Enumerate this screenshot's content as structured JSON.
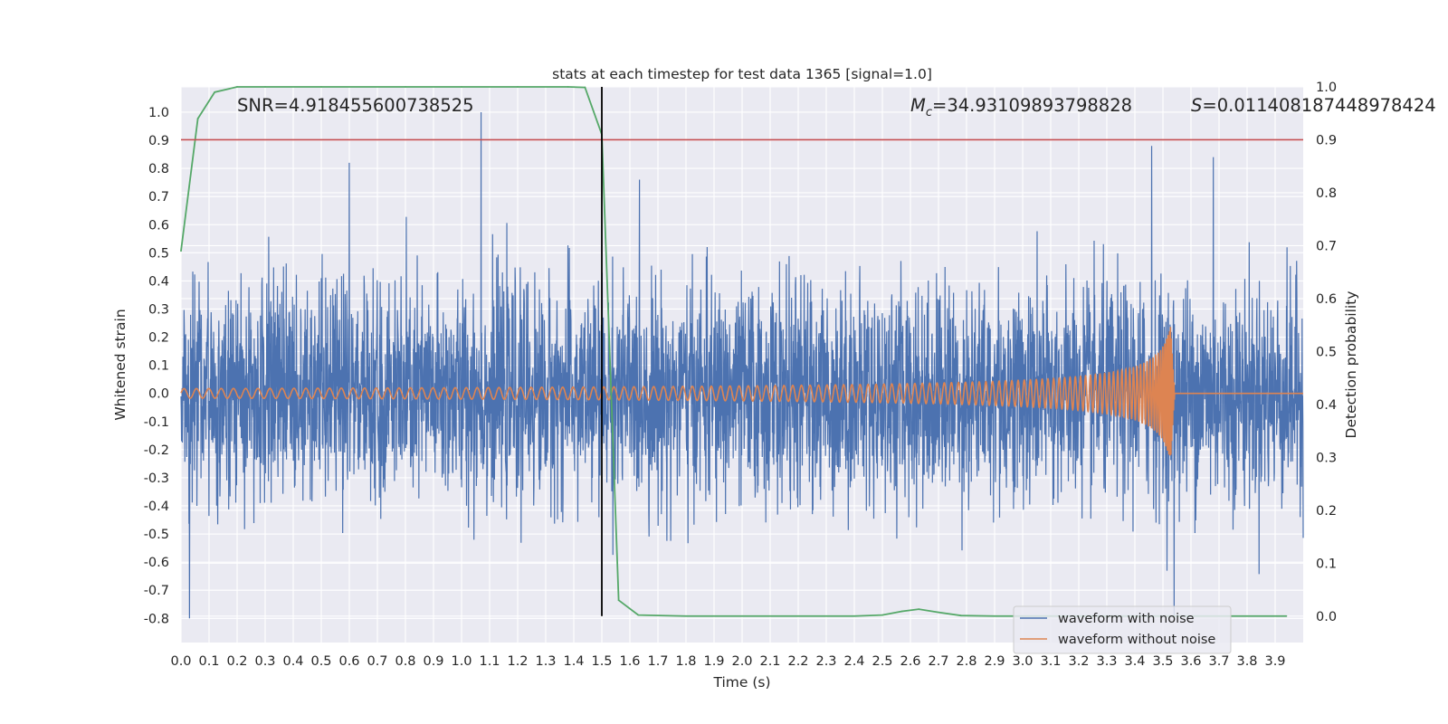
{
  "chart_data": {
    "type": "line",
    "title": "stats at each timestep for test data 1365 [signal=1.0]",
    "xlabel": "Time (s)",
    "ylabel": "Whitened strain",
    "y2label": "Detection probability",
    "xlim": [
      0.0,
      4.0
    ],
    "ylim": [
      -0.886,
      1.09
    ],
    "y2lim": [
      -0.05,
      1.0
    ],
    "x_ticks": [
      "0.0",
      "0.1",
      "0.2",
      "0.3",
      "0.4",
      "0.5",
      "0.6",
      "0.7",
      "0.8",
      "0.9",
      "1.0",
      "1.1",
      "1.2",
      "1.3",
      "1.4",
      "1.5",
      "1.6",
      "1.7",
      "1.8",
      "1.9",
      "2.0",
      "2.1",
      "2.2",
      "2.3",
      "2.4",
      "2.5",
      "2.6",
      "2.7",
      "2.8",
      "2.9",
      "3.0",
      "3.1",
      "3.2",
      "3.3",
      "3.4",
      "3.5",
      "3.6",
      "3.7",
      "3.8",
      "3.9"
    ],
    "y_ticks": [
      "-0.8",
      "-0.7",
      "-0.6",
      "-0.5",
      "-0.4",
      "-0.3",
      "-0.2",
      "-0.1",
      "0.0",
      "0.1",
      "0.2",
      "0.3",
      "0.4",
      "0.5",
      "0.6",
      "0.7",
      "0.8",
      "0.9",
      "1.0"
    ],
    "y2_ticks": [
      "0.0",
      "0.1",
      "0.2",
      "0.3",
      "0.4",
      "0.5",
      "0.6",
      "0.7",
      "0.8",
      "0.9",
      "1.0"
    ],
    "annotations": {
      "snr": "SNR=4.918455600738525",
      "mc_symbol": "M",
      "mc_sub": "c",
      "mc_value": "=34.93109893798828",
      "s_symbol": "S",
      "s_value": "=0.011408187448978424"
    },
    "threshold_y2": 0.9,
    "vline_x": 1.5,
    "legend": {
      "placement": "bottom-right",
      "entries": [
        "waveform with noise",
        "waveform without noise"
      ]
    },
    "series": [
      {
        "name": "waveform with noise",
        "color": "#4c72b0",
        "axis": "left",
        "description": "whitened strain noise, sampled densely (~2048 Hz) over 0-4 s",
        "amplitude_range": [
          -0.8,
          1.0
        ],
        "notable_peaks": [
          {
            "x": 1.07,
            "y": 1.0
          },
          {
            "x": 3.46,
            "y": 0.88
          },
          {
            "x": 3.68,
            "y": 0.84
          },
          {
            "x": 0.6,
            "y": 0.82
          },
          {
            "x": 3.54,
            "y": -0.8
          },
          {
            "x": 0.03,
            "y": -0.8
          }
        ]
      },
      {
        "name": "waveform without noise",
        "color": "#dd8452",
        "axis": "left",
        "description": "gravitational-wave chirp, amplitude growing to merger near 3.53 s then zero",
        "merger_time": 3.53,
        "peak_amplitude": 0.26
      },
      {
        "name": "detection probability",
        "color": "#55a868",
        "axis": "right",
        "x": [
          0.0,
          0.06,
          0.12,
          0.2,
          0.3,
          0.5,
          0.8,
          1.0,
          1.2,
          1.38,
          1.44,
          1.5,
          1.56,
          1.63,
          1.8,
          2.0,
          2.2,
          2.4,
          2.5,
          2.57,
          2.63,
          2.7,
          2.78,
          2.9,
          3.0,
          3.2,
          3.4,
          3.6,
          3.8,
          3.94
        ],
        "values": [
          0.69,
          0.94,
          0.99,
          1.0,
          1.0,
          1.0,
          1.0,
          1.0,
          1.0,
          1.0,
          0.999,
          0.91,
          0.03,
          0.002,
          0.0,
          0.0,
          0.0,
          0.0,
          0.002,
          0.009,
          0.013,
          0.007,
          0.001,
          0.0,
          0.0,
          0.0,
          0.0,
          0.0,
          0.0,
          0.0
        ]
      }
    ],
    "colors": {
      "background": "#eaeaf2",
      "grid": "#ffffff",
      "threshold": "#c44e52",
      "vline": "#000000"
    }
  }
}
